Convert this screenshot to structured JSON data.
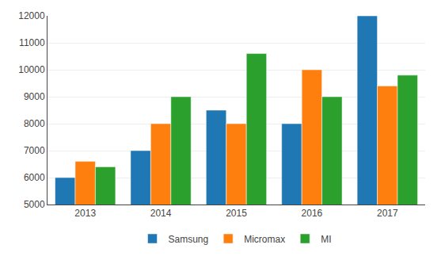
{
  "chart_data": {
    "type": "bar",
    "categories": [
      "2013",
      "2014",
      "2015",
      "2016",
      "2017"
    ],
    "series": [
      {
        "name": "Samsung",
        "values": [
          6000,
          7000,
          8500,
          8000,
          12000
        ]
      },
      {
        "name": "Micromax",
        "values": [
          6600,
          8000,
          8000,
          10000,
          9400
        ]
      },
      {
        "name": "MI",
        "values": [
          6400,
          9000,
          10600,
          9000,
          9800
        ]
      }
    ],
    "ylim": [
      5000,
      12000
    ],
    "yticks": [
      5000,
      6000,
      7000,
      8000,
      9000,
      10000,
      11000,
      12000
    ],
    "grid": true,
    "legend": "bottom"
  }
}
